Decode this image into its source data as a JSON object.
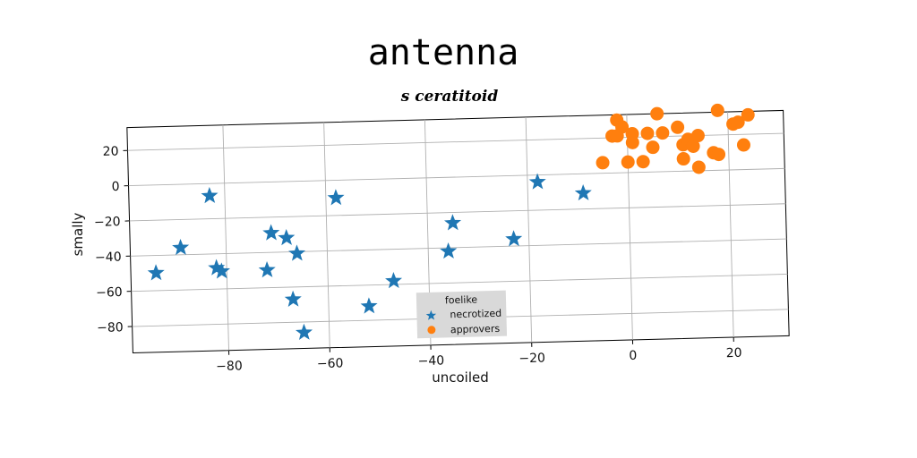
{
  "chart_data": {
    "type": "scatter",
    "title": "antenna",
    "subtitle": "s ceratitoid",
    "xlabel": "uncoiled",
    "ylabel": "smally",
    "xlim": [
      -99,
      31
    ],
    "ylim": [
      -95,
      33
    ],
    "xticks": [
      -80,
      -60,
      -40,
      -20,
      0,
      20
    ],
    "yticks": [
      20,
      0,
      -20,
      -40,
      -60,
      -80
    ],
    "grid": true,
    "legend": {
      "title": "foelike",
      "position": "bottom-center"
    },
    "colors": {
      "necrotized": "#1f77b4",
      "approvers": "#ff7f0e"
    },
    "series": [
      {
        "name": "necrotized",
        "marker": "star",
        "points": [
          [
            -94,
            -50
          ],
          [
            -89,
            -36
          ],
          [
            -83,
            -7
          ],
          [
            -82,
            -48
          ],
          [
            -81,
            -50
          ],
          [
            -72,
            -50
          ],
          [
            -71,
            -29
          ],
          [
            -68,
            -32
          ],
          [
            -66,
            -41
          ],
          [
            -67,
            -67
          ],
          [
            -65,
            -86
          ],
          [
            -58,
            -10
          ],
          [
            -52,
            -72
          ],
          [
            -47,
            -58
          ],
          [
            -36,
            -42
          ],
          [
            -35,
            -26
          ],
          [
            -31,
            -79
          ],
          [
            -23,
            -36
          ],
          [
            -18,
            -4
          ],
          [
            -9,
            -11
          ]
        ]
      },
      {
        "name": "approvers",
        "marker": "circle",
        "points": [
          [
            -5,
            6
          ],
          [
            -3,
            21
          ],
          [
            -2,
            21
          ],
          [
            -2,
            30
          ],
          [
            -1,
            26
          ],
          [
            0,
            6
          ],
          [
            1,
            22
          ],
          [
            1,
            17
          ],
          [
            3,
            6
          ],
          [
            4,
            22
          ],
          [
            5,
            14
          ],
          [
            6,
            33
          ],
          [
            7,
            22
          ],
          [
            10,
            25
          ],
          [
            11,
            7
          ],
          [
            11,
            15
          ],
          [
            12,
            18
          ],
          [
            13,
            14
          ],
          [
            14,
            20
          ],
          [
            14,
            2
          ],
          [
            17,
            10
          ],
          [
            18,
            9
          ],
          [
            18,
            34
          ],
          [
            21,
            26
          ],
          [
            22,
            27
          ],
          [
            23,
            14
          ],
          [
            24,
            31
          ]
        ]
      }
    ]
  }
}
